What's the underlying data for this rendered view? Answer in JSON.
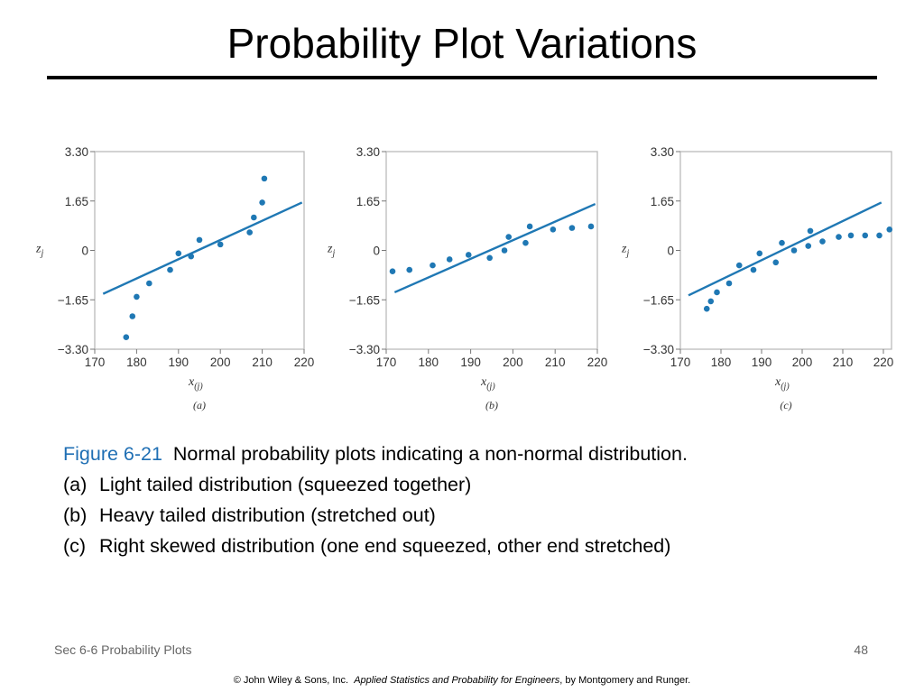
{
  "slide": {
    "title": "Probability Plot Variations",
    "caption": {
      "figure_label": "Figure 6-21",
      "figure_text": "Normal probability plots indicating a non-normal distribution.",
      "items": [
        {
          "tag": "(a)",
          "text": "Light tailed distribution (squeezed together)"
        },
        {
          "tag": "(b)",
          "text": "Heavy tailed distribution (stretched out)"
        },
        {
          "tag": "(c)",
          "text": "Right skewed distribution (one end squeezed, other end stretched)"
        }
      ]
    },
    "footer_left": "Sec 6-6 Probability Plots",
    "page_number": "48",
    "copyright": {
      "prefix": "© John Wiley & Sons, Inc.",
      "book": "Applied Statistics and Probability for Engineers",
      "suffix": ", by Montgomery and Runger."
    }
  },
  "colors": {
    "accent": "#1f6fb4",
    "marker": "#1f78b4",
    "line": "#1f78b4",
    "frame": "#bbbbbb"
  },
  "chart_data": [
    {
      "type": "scatter",
      "panel_label": "(a)",
      "xlabel": "x(j)",
      "ylabel": "zj",
      "xlim": [
        170,
        220
      ],
      "ylim": [
        -3.3,
        3.3
      ],
      "xticks": [
        "170",
        "180",
        "190",
        "200",
        "210",
        "220"
      ],
      "yticks": [
        "3.30",
        "1.65",
        "0",
        "−1.65",
        "−3.30"
      ],
      "points": [
        [
          177.5,
          -2.9
        ],
        [
          179,
          -2.2
        ],
        [
          180,
          -1.55
        ],
        [
          183,
          -1.1
        ],
        [
          188,
          -0.65
        ],
        [
          190,
          -0.1
        ],
        [
          193,
          -0.2
        ],
        [
          195,
          0.35
        ],
        [
          200,
          0.2
        ],
        [
          207,
          0.6
        ],
        [
          208,
          1.1
        ],
        [
          210,
          1.6
        ],
        [
          210.5,
          2.4
        ]
      ],
      "fit_line": [
        [
          172,
          -1.45
        ],
        [
          219.5,
          1.6
        ]
      ],
      "grid": false
    },
    {
      "type": "scatter",
      "panel_label": "(b)",
      "xlabel": "x(j)",
      "ylabel": "zj",
      "xlim": [
        170,
        220
      ],
      "ylim": [
        -3.3,
        3.3
      ],
      "xticks": [
        "170",
        "180",
        "190",
        "200",
        "210",
        "220"
      ],
      "yticks": [
        "3.30",
        "1.65",
        "0",
        "−1.65",
        "−3.30"
      ],
      "points": [
        [
          171.5,
          -0.7
        ],
        [
          175.5,
          -0.65
        ],
        [
          181,
          -0.5
        ],
        [
          185,
          -0.3
        ],
        [
          189.5,
          -0.15
        ],
        [
          194.5,
          -0.25
        ],
        [
          198,
          0.0
        ],
        [
          199,
          0.45
        ],
        [
          203,
          0.25
        ],
        [
          204,
          0.8
        ],
        [
          209.5,
          0.7
        ],
        [
          214,
          0.75
        ],
        [
          218.5,
          0.8
        ]
      ],
      "fit_line": [
        [
          172,
          -1.4
        ],
        [
          219.5,
          1.55
        ]
      ],
      "grid": false
    },
    {
      "type": "scatter",
      "panel_label": "(c)",
      "xlabel": "x(j)",
      "ylabel": "zj",
      "xlim": [
        170,
        222
      ],
      "ylim": [
        -3.3,
        3.3
      ],
      "xticks": [
        "170",
        "180",
        "190",
        "200",
        "210",
        "220"
      ],
      "yticks": [
        "3.30",
        "1.65",
        "0",
        "−1.65",
        "−3.30"
      ],
      "points": [
        [
          176.5,
          -1.95
        ],
        [
          177.5,
          -1.7
        ],
        [
          179,
          -1.4
        ],
        [
          182,
          -1.1
        ],
        [
          184.5,
          -0.5
        ],
        [
          188,
          -0.65
        ],
        [
          189.5,
          -0.1
        ],
        [
          193.5,
          -0.4
        ],
        [
          195,
          0.25
        ],
        [
          198,
          0.0
        ],
        [
          201.5,
          0.15
        ],
        [
          202,
          0.65
        ],
        [
          205,
          0.3
        ],
        [
          209,
          0.45
        ],
        [
          212,
          0.5
        ],
        [
          215.5,
          0.5
        ],
        [
          219,
          0.5
        ],
        [
          221.5,
          0.7
        ]
      ],
      "fit_line": [
        [
          172,
          -1.5
        ],
        [
          219.5,
          1.6
        ]
      ],
      "grid": false
    }
  ]
}
